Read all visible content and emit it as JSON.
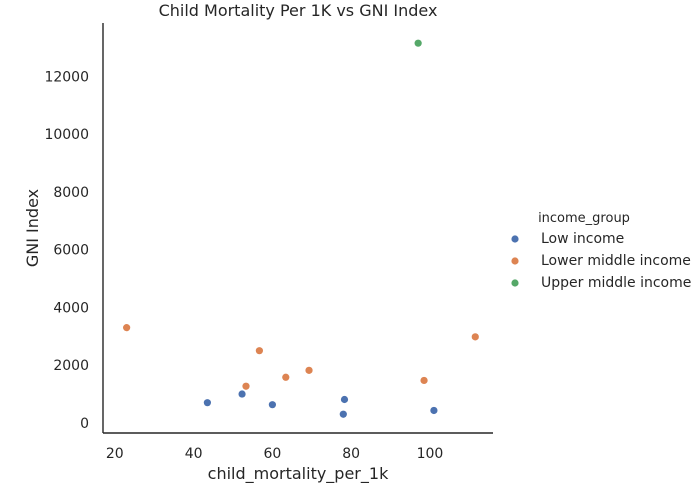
{
  "chart_data": {
    "type": "scatter",
    "title": "Child Mortality Per 1K vs GNI Index",
    "xlabel": "child_mortality_per_1k",
    "ylabel": "GNI Index",
    "xlim": [
      17,
      116
    ],
    "ylim": [
      -350,
      13850
    ],
    "xticks": [
      20,
      40,
      60,
      80,
      100
    ],
    "yticks": [
      0,
      2000,
      4000,
      6000,
      8000,
      10000,
      12000
    ],
    "grid": false,
    "legend": {
      "title": "income_group",
      "position": "right"
    },
    "series": [
      {
        "name": "Low income",
        "color": "#4c72b0",
        "points": [
          {
            "x": 43.5,
            "y": 700
          },
          {
            "x": 52.3,
            "y": 1000
          },
          {
            "x": 60.0,
            "y": 630
          },
          {
            "x": 78.0,
            "y": 300
          },
          {
            "x": 78.3,
            "y": 810
          },
          {
            "x": 101.0,
            "y": 430
          }
        ]
      },
      {
        "name": "Lower middle income",
        "color": "#dd8452",
        "points": [
          {
            "x": 23.0,
            "y": 3300
          },
          {
            "x": 53.3,
            "y": 1270
          },
          {
            "x": 56.7,
            "y": 2500
          },
          {
            "x": 63.4,
            "y": 1580
          },
          {
            "x": 69.3,
            "y": 1820
          },
          {
            "x": 98.5,
            "y": 1470
          },
          {
            "x": 111.5,
            "y": 2980
          }
        ]
      },
      {
        "name": "Upper middle income",
        "color": "#55a868",
        "points": [
          {
            "x": 97.0,
            "y": 13150
          }
        ]
      }
    ]
  }
}
